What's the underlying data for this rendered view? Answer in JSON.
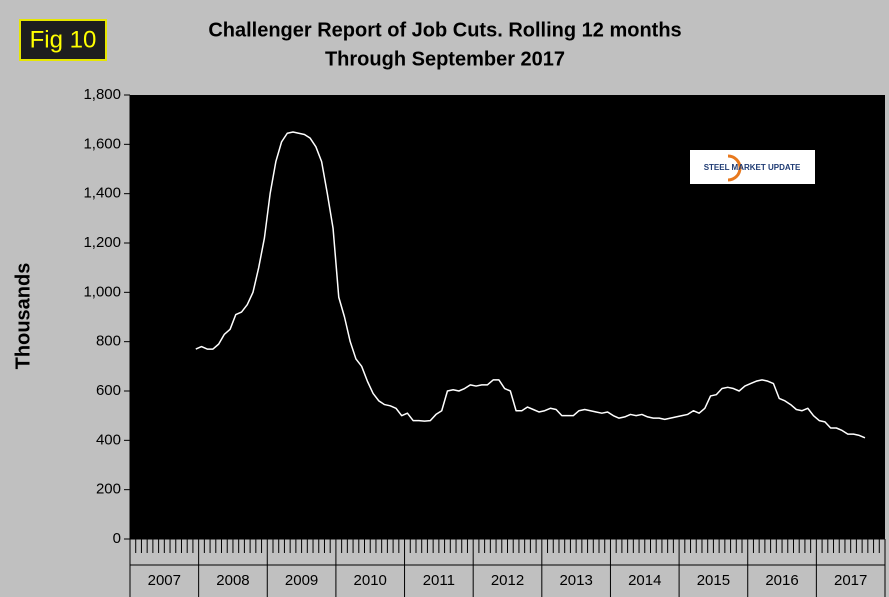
{
  "chart_data": {
    "type": "line",
    "badge": "Fig 10",
    "title": "Challenger Report of Job Cuts. Rolling 12 months",
    "subtitle": "Through September 2017",
    "y_label": "Thousands",
    "logo_text": "STEEL MARKET UPDATE",
    "x_labels": [
      "2007",
      "2008",
      "2009",
      "2010",
      "2011",
      "2012",
      "2013",
      "2014",
      "2015",
      "2016",
      "2017"
    ],
    "ylim": [
      0,
      1800
    ],
    "yticks": [
      0,
      200,
      400,
      600,
      800,
      {
        "value": 1000,
        "label": "1,000"
      },
      {
        "value": 1200,
        "label": "1,200"
      },
      {
        "value": 1400,
        "label": "1,400"
      },
      {
        "value": 1600,
        "label": "1,600"
      },
      {
        "value": 1800,
        "label": "1,800"
      }
    ],
    "series": [
      {
        "color": "#ffffff",
        "values": [
          null,
          null,
          null,
          null,
          null,
          null,
          null,
          null,
          null,
          null,
          null,
          770,
          780,
          770,
          770,
          790,
          830,
          850,
          910,
          920,
          950,
          1000,
          1100,
          1220,
          1400,
          1530,
          1610,
          1645,
          1650,
          1645,
          1640,
          1625,
          1590,
          1530,
          1400,
          1260,
          980,
          900,
          800,
          730,
          700,
          640,
          590,
          560,
          545,
          540,
          530,
          500,
          510,
          480,
          480,
          478,
          480,
          505,
          520,
          600,
          605,
          600,
          610,
          625,
          620,
          625,
          625,
          645,
          645,
          610,
          600,
          520,
          520,
          535,
          525,
          515,
          520,
          530,
          525,
          500,
          500,
          500,
          520,
          525,
          520,
          515,
          510,
          515,
          500,
          490,
          495,
          505,
          500,
          505,
          495,
          490,
          490,
          485,
          490,
          495,
          500,
          505,
          520,
          510,
          530,
          580,
          585,
          610,
          615,
          610,
          600,
          620,
          630,
          640,
          645,
          640,
          630,
          570,
          560,
          545,
          525,
          520,
          530,
          500,
          480,
          475,
          450,
          450,
          440,
          425,
          425,
          420,
          410,
          null,
          null,
          null
        ]
      }
    ]
  }
}
